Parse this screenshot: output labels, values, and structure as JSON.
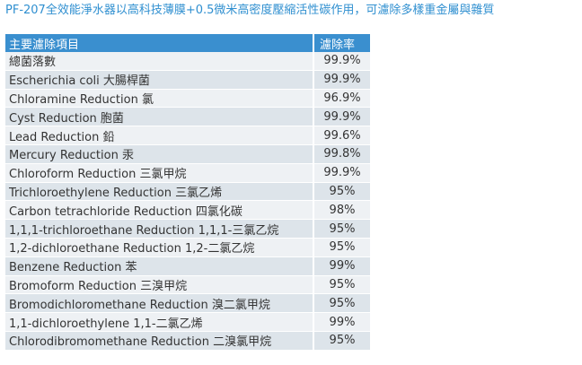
{
  "title": "PF-207全效能淨水器以高科技薄膜+0.5微米高密度壓縮活性碳作用，可濾除多樣重金屬與雜質",
  "table": {
    "headers": {
      "item": "主要濾除項目",
      "rate": "濾除率"
    },
    "rows": [
      {
        "item": "總菌落數",
        "rate": "99.9%"
      },
      {
        "item": "Escherichia coli 大腸桿菌",
        "rate": "99.9%"
      },
      {
        "item": "Chloramine Reduction 氯",
        "rate": "96.9%"
      },
      {
        "item": "Cyst Reduction 胞菌",
        "rate": "99.9%"
      },
      {
        "item": "Lead Reduction 鉛",
        "rate": "99.6%"
      },
      {
        "item": "Mercury Reduction 汞",
        "rate": "99.8%"
      },
      {
        "item": "Chloroform Reduction 三氯甲烷",
        "rate": "99.9%"
      },
      {
        "item": "Trichloroethylene Reduction 三氯乙烯",
        "rate": "95%"
      },
      {
        "item": "Carbon tetrachloride Reduction 四氯化碳",
        "rate": "98%"
      },
      {
        "item": "1,1,1-trichloroethane Reduction 1,1,1-三氯乙烷",
        "rate": "95%"
      },
      {
        "item": "1,2-dichloroethane Reduction 1,2-二氯乙烷",
        "rate": "95%"
      },
      {
        "item": "Benzene Reduction 苯",
        "rate": "99%"
      },
      {
        "item": "Bromoform Reduction 三溴甲烷",
        "rate": "95%"
      },
      {
        "item": "Bromodichloromethane Reduction 溴二氯甲烷",
        "rate": "95%"
      },
      {
        "item": "1,1-dichloroethylene 1,1-二氯乙烯",
        "rate": "99%"
      },
      {
        "item": "Chlorodibromomethane Reduction 二溴氯甲烷",
        "rate": "95%"
      }
    ]
  }
}
